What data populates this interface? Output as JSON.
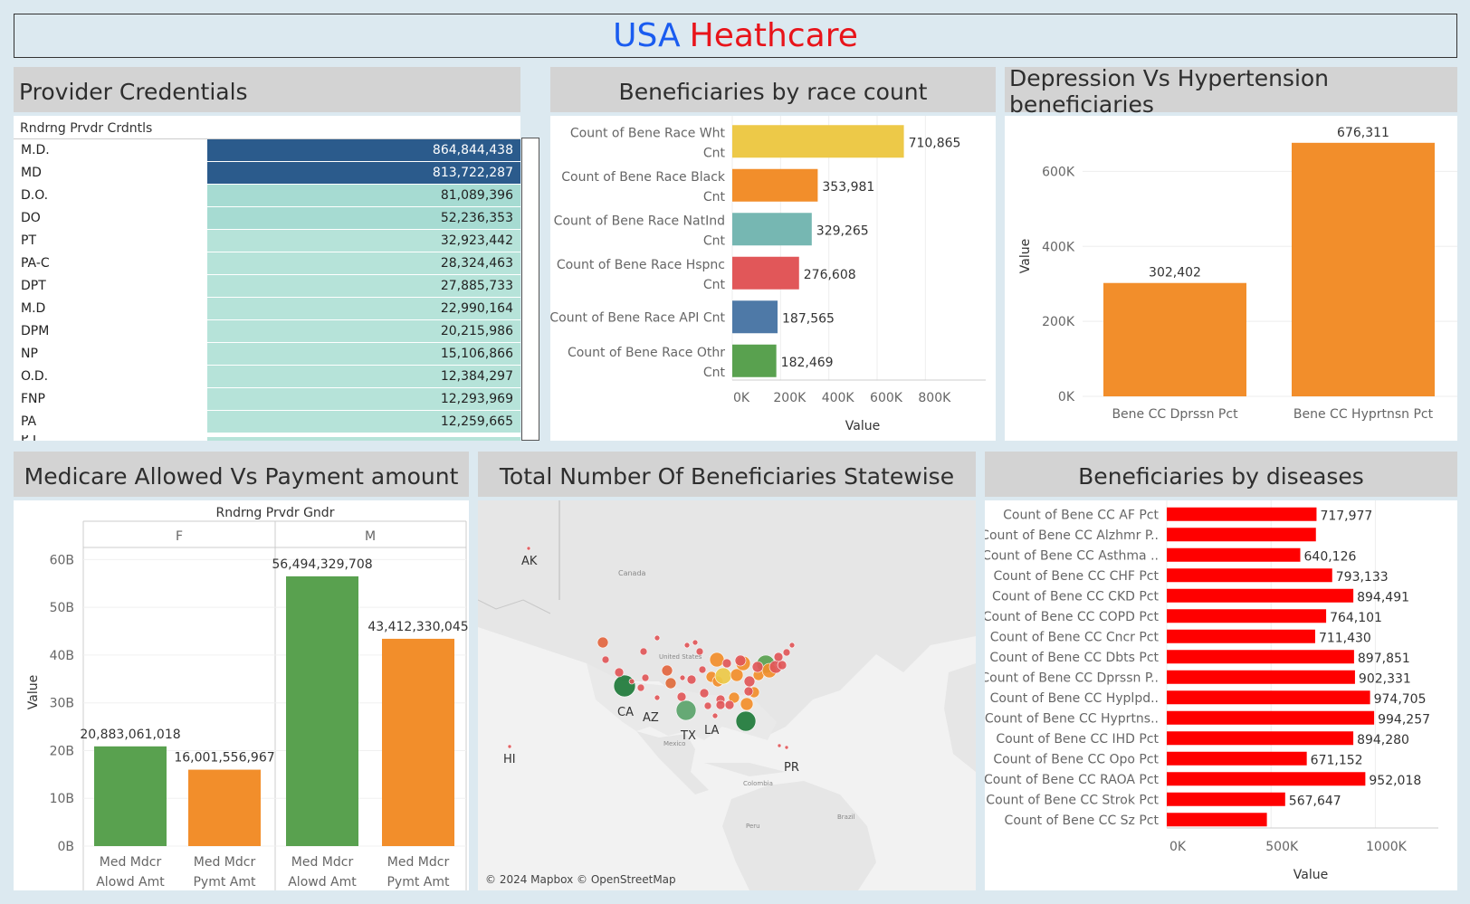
{
  "header": {
    "title_part1": "USA",
    "title_part2": "Heathcare"
  },
  "colors": {
    "dark_blue": "#2b5b8c",
    "teal_light": "#b6e3d9",
    "teal_mid": "#a6dbd2",
    "orange": "#f28e2b",
    "green": "#59a14f",
    "red": "#ff0000"
  },
  "provider": {
    "title": "Provider Credentials",
    "column": "Rndrng Prvdr Crdntls",
    "rows": [
      {
        "name": "M.D.",
        "value": "864,844,438",
        "shade": "dark"
      },
      {
        "name": "MD",
        "value": "813,722,287",
        "shade": "dark"
      },
      {
        "name": "D.O.",
        "value": "81,089,396",
        "shade": "mid"
      },
      {
        "name": "DO",
        "value": "52,236,353",
        "shade": "mid"
      },
      {
        "name": "PT",
        "value": "32,923,442",
        "shade": "light"
      },
      {
        "name": "PA-C",
        "value": "28,324,463",
        "shade": "light"
      },
      {
        "name": "DPT",
        "value": "27,885,733",
        "shade": "light"
      },
      {
        "name": "M.D",
        "value": "22,990,164",
        "shade": "light"
      },
      {
        "name": "DPM",
        "value": "20,215,986",
        "shade": "light"
      },
      {
        "name": "NP",
        "value": "15,106,866",
        "shade": "light"
      },
      {
        "name": "O.D.",
        "value": "12,384,297",
        "shade": "light"
      },
      {
        "name": "FNP",
        "value": "12,293,969",
        "shade": "light"
      },
      {
        "name": "PA",
        "value": "12,259,665",
        "shade": "light"
      }
    ]
  },
  "chart_data": [
    {
      "id": "race",
      "title": "Beneficiaries by race count",
      "type": "bar",
      "orientation": "horizontal",
      "xlabel": "Value",
      "xlim": [
        0,
        900000
      ],
      "xticks": [
        "0K",
        "200K",
        "400K",
        "600K",
        "800K"
      ],
      "categories": [
        [
          "Count of Bene Race Wht",
          "Cnt"
        ],
        [
          "Count of Bene Race Black",
          "Cnt"
        ],
        [
          "Count of Bene Race NatInd",
          "Cnt"
        ],
        [
          "Count of Bene Race Hspnc",
          "Cnt"
        ],
        [
          "Count of Bene Race API Cnt"
        ],
        [
          "Count of Bene Race Othr",
          "Cnt"
        ]
      ],
      "values": [
        710865,
        353981,
        329265,
        276608,
        187565,
        182469
      ],
      "labels": [
        "710,865",
        "353,981",
        "329,265",
        "276,608",
        "187,565",
        "182,469"
      ],
      "colors": [
        "#edc948",
        "#f28e2b",
        "#76b7b2",
        "#e15759",
        "#4e79a7",
        "#59a14f"
      ]
    },
    {
      "id": "dep",
      "title": "Depression Vs Hypertension beneficiaries",
      "type": "bar",
      "orientation": "vertical",
      "ylabel": "Value",
      "ylim": [
        0,
        700000
      ],
      "yticks": [
        "0K",
        "200K",
        "400K",
        "600K"
      ],
      "categories": [
        "Bene CC Dprssn Pct",
        "Bene CC Hyprtnsn Pct"
      ],
      "values": [
        302402,
        676311
      ],
      "labels": [
        "302,402",
        "676,311"
      ],
      "color": "#f28e2b"
    },
    {
      "id": "medicare",
      "title": "Medicare Allowed Vs Payment amount",
      "type": "bar",
      "orientation": "vertical",
      "facet_label": "Rndrng Prvdr Gndr",
      "facets": [
        "F",
        "M"
      ],
      "ylabel": "Value",
      "ylim": [
        0,
        65000000000
      ],
      "yticks": [
        "0B",
        "10B",
        "20B",
        "30B",
        "40B",
        "50B",
        "60B"
      ],
      "categories": [
        [
          "Med Mdcr",
          "Alowd Amt"
        ],
        [
          "Med Mdcr",
          "Pymt Amt"
        ]
      ],
      "series": [
        {
          "facet": "F",
          "values": [
            20883061018,
            16001556967
          ],
          "labels": [
            "20,883,061,018",
            "16,001,556,967"
          ]
        },
        {
          "facet": "M",
          "values": [
            56494329708,
            43412330045
          ],
          "labels": [
            "56,494,329,708",
            "43,412,330,045"
          ]
        }
      ],
      "colors": [
        "#59a14f",
        "#f28e2b"
      ]
    },
    {
      "id": "diseases",
      "title": "Beneficiaries by  diseases",
      "type": "bar",
      "orientation": "horizontal",
      "xlabel": "Value",
      "xlim": [
        0,
        1150000
      ],
      "xticks": [
        "0K",
        "500K",
        "1000K"
      ],
      "categories": [
        "Count of Bene CC AF Pct",
        "Count of Bene CC Alzhmr P..",
        "Count of Bene CC Asthma ..",
        "Count of Bene CC CHF Pct",
        "Count of Bene CC CKD Pct",
        "Count of Bene CC COPD Pct",
        "Count of Bene CC Cncr Pct",
        "Count of Bene CC Dbts Pct",
        "Count of Bene CC Dprssn P..",
        "Count of Bene CC Hyplpd..",
        "Count of Bene CC Hyprtns..",
        "Count of Bene CC IHD Pct",
        "Count of Bene CC Opo Pct",
        "Count of Bene CC RAOA Pct",
        "Count of Bene CC Strok Pct",
        "Count of Bene CC Sz Pct"
      ],
      "values": [
        717977,
        715000,
        640126,
        793133,
        894491,
        764101,
        711430,
        897851,
        902331,
        974705,
        994257,
        894280,
        671152,
        952018,
        567647,
        480000
      ],
      "labels": [
        "717,977",
        "",
        "640,126",
        "793,133",
        "894,491",
        "764,101",
        "711,430",
        "897,851",
        "902,331",
        "974,705",
        "994,257",
        "894,280",
        "671,152",
        "952,018",
        "567,647",
        ""
      ],
      "color": "#ff0000"
    }
  ],
  "map": {
    "title": "Total Number Of Beneficiaries Statewise",
    "attribution": "© 2024 Mapbox © OpenStreetMap",
    "base_labels": [
      "Canada",
      "United States",
      "Mexico",
      "Colombia",
      "Peru",
      "Brazil"
    ],
    "state_labels": [
      "AK",
      "HI",
      "CA",
      "AZ",
      "TX",
      "LA",
      "PR"
    ]
  }
}
